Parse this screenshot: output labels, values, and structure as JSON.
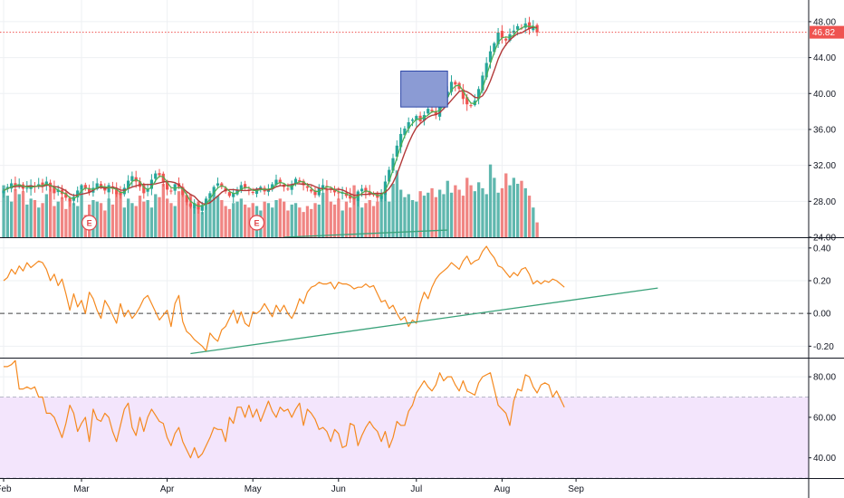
{
  "chart_data": {
    "type": "candlestick",
    "colors": {
      "up": "#26a69a",
      "down": "#ef5350",
      "volume_up": "#5fb7ae",
      "volume_down": "#f08583",
      "ma_fast": "#4caf50",
      "ma_slow": "#b23a3a",
      "indicator_line": "#f5891f",
      "trend_line": "#3aa27a",
      "rsi_band": "#f3e5fc",
      "rectangle_fill": "#8b9bd4",
      "rectangle_border": "#2d47a8",
      "price_tag": "#ef5350"
    },
    "x_axis": {
      "labels": [
        "Feb",
        "Mar",
        "Apr",
        "May",
        "Jun",
        "Jul",
        "Aug",
        "Sep"
      ],
      "label_positions": [
        0,
        20,
        42,
        64,
        86,
        106,
        128,
        147
      ]
    },
    "panes": [
      {
        "name": "price",
        "ylim": [
          24,
          49
        ],
        "yticks": [
          "24.00",
          "28.00",
          "32.00",
          "36.00",
          "40.00",
          "44.00",
          "48.00"
        ],
        "ytick_values": [
          24,
          28,
          32,
          36,
          40,
          44,
          48
        ],
        "last_price": "46.82",
        "last_price_value": 46.82,
        "closes": [
          29.2,
          29.6,
          30.0,
          29.7,
          29.9,
          29.4,
          29.5,
          29.8,
          29.6,
          29.9,
          29.7,
          30.2,
          29.5,
          28.9,
          29.3,
          28.8,
          28.4,
          28.0,
          28.5,
          29.2,
          29.8,
          29.4,
          29.0,
          29.5,
          30.0,
          29.6,
          29.2,
          29.8,
          29.4,
          28.8,
          28.7,
          29.5,
          30.3,
          30.8,
          30.2,
          29.6,
          28.9,
          29.4,
          30.4,
          31.1,
          30.9,
          30.2,
          29.3,
          29.1,
          29.9,
          29.6,
          28.7,
          27.9,
          27.4,
          27.8,
          27.1,
          27.6,
          28.3,
          28.9,
          29.6,
          30.0,
          29.6,
          29.1,
          28.6,
          28.9,
          29.3,
          29.8,
          29.5,
          29.2,
          29.0,
          29.3,
          29.6,
          29.1,
          29.4,
          29.9,
          30.4,
          30.0,
          29.6,
          29.4,
          29.9,
          30.5,
          30.2,
          29.8,
          29.5,
          29.1,
          28.7,
          29.5,
          29.8,
          29.6,
          29.3,
          29.0,
          28.9,
          29.0,
          28.6,
          28.3,
          28.2,
          29.1,
          29.4,
          29.0,
          28.8,
          28.7,
          28.4,
          28.9,
          30.2,
          31.5,
          32.8,
          34.2,
          35.5,
          36.1,
          36.8,
          37.1,
          37.5,
          36.9,
          37.6,
          38.3,
          38.0,
          37.6,
          38.8,
          39.6,
          40.2,
          41.3,
          41.0,
          40.5,
          39.4,
          38.8,
          38.6,
          39.2,
          40.5,
          42.0,
          43.4,
          44.7,
          45.6,
          46.8,
          46.2,
          45.9,
          46.6,
          47.0,
          47.5,
          47.3,
          47.8,
          47.2,
          47.5,
          46.8
        ],
        "volume_scale": [
          0,
          1
        ],
        "volumes": [
          0.7,
          0.56,
          0.48,
          0.65,
          0.58,
          0.62,
          0.44,
          0.52,
          0.5,
          0.4,
          0.46,
          0.58,
          0.66,
          0.42,
          0.48,
          0.54,
          0.38,
          0.5,
          0.46,
          0.42,
          0.64,
          0.3,
          0.44,
          0.5,
          0.48,
          0.46,
          0.36,
          0.52,
          0.44,
          0.6,
          0.62,
          0.4,
          0.52,
          0.46,
          0.42,
          0.56,
          0.48,
          0.5,
          0.4,
          0.58,
          0.54,
          0.72,
          0.52,
          0.46,
          0.42,
          0.62,
          0.68,
          0.56,
          0.58,
          0.4,
          0.48,
          0.34,
          0.44,
          0.52,
          0.6,
          0.56,
          0.5,
          0.42,
          0.38,
          0.46,
          0.48,
          0.52,
          0.44,
          0.4,
          0.46,
          0.42,
          0.36,
          0.48,
          0.46,
          0.4,
          0.5,
          0.52,
          0.48,
          0.36,
          0.44,
          0.46,
          0.4,
          0.34,
          0.42,
          0.38,
          0.46,
          0.44,
          0.6,
          0.64,
          0.48,
          0.44,
          0.52,
          0.36,
          0.48,
          0.4,
          0.7,
          0.6,
          0.4,
          0.46,
          0.5,
          0.42,
          0.48,
          0.56,
          0.62,
          0.48,
          0.72,
          0.9,
          0.64,
          0.54,
          0.58,
          0.5,
          0.48,
          0.62,
          0.56,
          0.6,
          0.66,
          0.54,
          0.64,
          0.58,
          0.76,
          0.6,
          0.7,
          0.64,
          0.56,
          0.8,
          0.7,
          0.62,
          0.74,
          0.66,
          0.58,
          0.98,
          0.8,
          0.6,
          0.66,
          0.86,
          0.7,
          0.8,
          0.72,
          0.76,
          0.66,
          0.56,
          0.4,
          0.2
        ],
        "earnings_markers": [
          "E",
          "E"
        ],
        "earnings_positions": [
          22,
          65
        ],
        "rectangle": {
          "x": [
            102,
            114
          ],
          "y": [
            38.5,
            42.5
          ]
        },
        "trend_line": {
          "x": [
            72,
            114
          ],
          "y": [
            24.0,
            24.8
          ]
        }
      },
      {
        "name": "oscillator",
        "ylim": [
          -0.27,
          0.46
        ],
        "yticks": [
          "-0.20",
          "0.00",
          "0.20",
          "0.40"
        ],
        "ytick_values": [
          -0.2,
          0.0,
          0.2,
          0.4
        ],
        "zero_line": 0.0,
        "values": [
          0.2,
          0.22,
          0.27,
          0.24,
          0.29,
          0.26,
          0.31,
          0.28,
          0.3,
          0.32,
          0.31,
          0.27,
          0.2,
          0.24,
          0.17,
          0.21,
          0.12,
          0.02,
          0.12,
          0.04,
          0.08,
          0.0,
          0.13,
          0.09,
          0.02,
          -0.03,
          0.08,
          0.04,
          -0.01,
          -0.06,
          0.06,
          -0.02,
          0.02,
          -0.03,
          0.0,
          0.04,
          0.09,
          0.11,
          0.06,
          0.01,
          -0.04,
          -0.01,
          0.02,
          -0.08,
          0.06,
          0.11,
          -0.05,
          -0.11,
          -0.13,
          -0.16,
          -0.18,
          -0.2,
          -0.23,
          -0.12,
          -0.15,
          -0.17,
          -0.1,
          -0.08,
          -0.03,
          0.02,
          -0.06,
          0.01,
          -0.06,
          -0.08,
          0.01,
          0.0,
          0.02,
          0.06,
          0.02,
          -0.02,
          0.05,
          0.01,
          0.05,
          0.0,
          -0.03,
          0.02,
          0.09,
          0.06,
          0.13,
          0.16,
          0.17,
          0.19,
          0.18,
          0.18,
          0.19,
          0.15,
          0.19,
          0.18,
          0.18,
          0.17,
          0.15,
          0.16,
          0.16,
          0.18,
          0.16,
          0.17,
          0.12,
          0.07,
          0.08,
          0.03,
          0.05,
          0.0,
          -0.04,
          -0.02,
          -0.08,
          -0.04,
          -0.06,
          0.06,
          0.13,
          0.09,
          0.16,
          0.21,
          0.24,
          0.26,
          0.28,
          0.31,
          0.29,
          0.27,
          0.32,
          0.35,
          0.3,
          0.32,
          0.33,
          0.38,
          0.41,
          0.37,
          0.34,
          0.29,
          0.28,
          0.25,
          0.22,
          0.25,
          0.23,
          0.27,
          0.28,
          0.24,
          0.18,
          0.2,
          0.18,
          0.2,
          0.19,
          0.21,
          0.2,
          0.18,
          0.16
        ],
        "trend_line": {
          "x": [
            48,
            168
          ],
          "y": [
            -0.245,
            0.155
          ]
        }
      },
      {
        "name": "rsi",
        "ylim": [
          30,
          89
        ],
        "yticks": [
          "40.00",
          "60.00",
          "80.00"
        ],
        "ytick_values": [
          40,
          60,
          80
        ],
        "band": [
          30,
          70
        ],
        "values": [
          85,
          85,
          86,
          88,
          74,
          74,
          75,
          74,
          75,
          70,
          70,
          62,
          62,
          60,
          55,
          50,
          57,
          66,
          62,
          53,
          57,
          60,
          48,
          64,
          59,
          58,
          62,
          60,
          53,
          48,
          56,
          64,
          67,
          55,
          51,
          60,
          53,
          60,
          64,
          61,
          58,
          57,
          50,
          46,
          52,
          55,
          48,
          44,
          40,
          45,
          40,
          42,
          46,
          50,
          55,
          54,
          54,
          48,
          60,
          57,
          65,
          65,
          60,
          66,
          60,
          64,
          58,
          63,
          68,
          63,
          60,
          65,
          63,
          64,
          60,
          64,
          67,
          56,
          64,
          62,
          59,
          54,
          55,
          53,
          48,
          54,
          52,
          45,
          46,
          57,
          56,
          46,
          51,
          55,
          58,
          55,
          53,
          48,
          53,
          45,
          50,
          58,
          56,
          56,
          63,
          66,
          72,
          75,
          78,
          75,
          73,
          76,
          82,
          78,
          80,
          80,
          76,
          73,
          78,
          73,
          72,
          71,
          77,
          80,
          81,
          82,
          74,
          66,
          64,
          62,
          56,
          68,
          74,
          73,
          81,
          80,
          75,
          72,
          76,
          77,
          76,
          70,
          73,
          69,
          65
        ],
        "candle_offset": 0
      }
    ]
  }
}
